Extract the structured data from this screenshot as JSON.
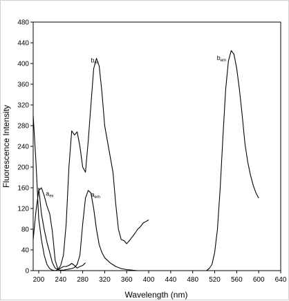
{
  "chart_data": {
    "type": "line",
    "title": "",
    "xlabel": "Wavelength (nm)",
    "ylabel": "Fluorescence Intensity",
    "xlim": [
      190,
      640
    ],
    "ylim": [
      0,
      480
    ],
    "x_ticks": [
      200,
      240,
      280,
      320,
      360,
      400,
      440,
      480,
      520,
      560,
      600,
      640
    ],
    "y_ticks": [
      0,
      40,
      80,
      120,
      160,
      200,
      240,
      280,
      320,
      360,
      400,
      440,
      480
    ],
    "grid": false,
    "line_color": "#000000",
    "series": [
      {
        "name": "a_ex",
        "label_main": "a",
        "label_sub": "ex",
        "label_at": [
          213,
          145
        ],
        "x": [
          190,
          195,
          200,
          205,
          210,
          215,
          220,
          225,
          230,
          235,
          240,
          245,
          250,
          255,
          260,
          265,
          270,
          275,
          280,
          285
        ],
        "y": [
          60,
          115,
          155,
          160,
          145,
          125,
          110,
          75,
          20,
          3,
          5,
          8,
          8,
          10,
          14,
          10,
          5,
          8,
          10,
          15
        ]
      },
      {
        "name": "a_em",
        "label_main": "a",
        "label_sub": "em",
        "label_at": [
          295,
          143
        ],
        "x": [
          200,
          205,
          210,
          215,
          220,
          225,
          230,
          235,
          240,
          245,
          250,
          255,
          260,
          265,
          270,
          275,
          280,
          285,
          290,
          295,
          300,
          305,
          310,
          315,
          320,
          330,
          340,
          350,
          360,
          370,
          380
        ],
        "y": [
          160,
          110,
          80,
          55,
          35,
          15,
          5,
          2,
          1,
          1,
          2,
          3,
          4,
          6,
          12,
          30,
          90,
          140,
          155,
          150,
          120,
          80,
          50,
          35,
          25,
          15,
          8,
          4,
          2,
          1,
          0
        ]
      },
      {
        "name": "b_ex",
        "label_main": "b",
        "label_sub": "ex",
        "label_at": [
          295,
          402
        ],
        "x": [
          190,
          195,
          200,
          205,
          210,
          215,
          220,
          225,
          230,
          235,
          240,
          245,
          250,
          255,
          260,
          265,
          270,
          275,
          280,
          285,
          290,
          295,
          300,
          305,
          310,
          315,
          320,
          325,
          330,
          335,
          340,
          345,
          350,
          355,
          360,
          365,
          370,
          375,
          380,
          385,
          390,
          395,
          400
        ],
        "y": [
          300,
          210,
          100,
          60,
          30,
          12,
          4,
          1,
          0,
          2,
          10,
          30,
          90,
          200,
          270,
          262,
          268,
          240,
          200,
          190,
          250,
          320,
          390,
          410,
          395,
          345,
          280,
          250,
          220,
          190,
          130,
          80,
          60,
          58,
          52,
          58,
          65,
          72,
          80,
          85,
          92,
          95,
          98
        ]
      },
      {
        "name": "b_em",
        "label_main": "b",
        "label_sub": "em",
        "label_at": [
          524,
          407
        ],
        "x": [
          505,
          510,
          515,
          520,
          525,
          530,
          535,
          540,
          545,
          550,
          555,
          560,
          565,
          570,
          575,
          580,
          585,
          590,
          595,
          600
        ],
        "y": [
          0,
          4,
          12,
          35,
          80,
          160,
          260,
          350,
          405,
          425,
          418,
          390,
          350,
          300,
          245,
          210,
          185,
          165,
          150,
          140
        ]
      }
    ]
  }
}
